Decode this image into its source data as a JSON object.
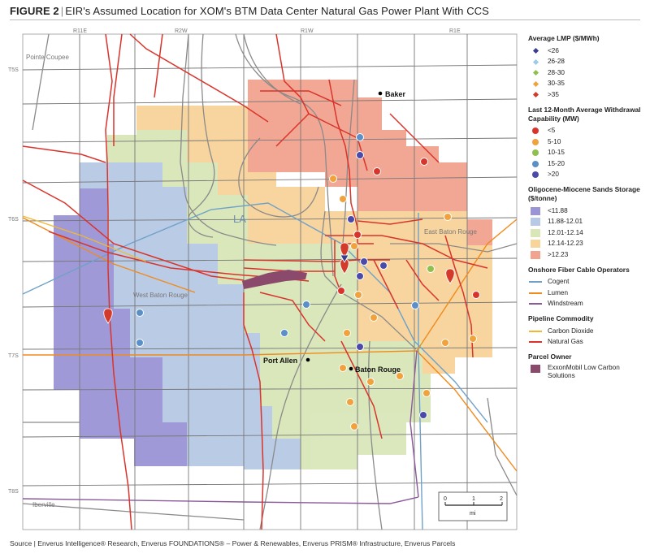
{
  "figure": {
    "label": "FIGURE 2",
    "title": "EIR's Assumed Location for XOM's BTM Data Center Natural Gas Power Plant With CCS"
  },
  "map": {
    "range_labels": [
      "R11E",
      "R2W",
      "R1W",
      "R1E"
    ],
    "township_labels": [
      "T5S",
      "T6S",
      "T7S",
      "T8S"
    ],
    "parish_labels": [
      "Pointe Coupee",
      "West Baton Rouge",
      "East Baton Rouge",
      "Iberville"
    ],
    "state_label": "LA",
    "cities": [
      "Baker",
      "Port Allen",
      "Baton Rouge"
    ],
    "scale": {
      "ticks": [
        "0",
        "1",
        "2"
      ],
      "unit": "mi"
    }
  },
  "legend": {
    "lmp": {
      "title": "Average LMP ($/MWh)",
      "items": [
        {
          "label": "<26",
          "color": "#3b3f8f"
        },
        {
          "label": "26-28",
          "color": "#9ec9e8"
        },
        {
          "label": "28-30",
          "color": "#8fbf4d"
        },
        {
          "label": "30-35",
          "color": "#f0a23c"
        },
        {
          "label": ">35",
          "color": "#d33a2c"
        }
      ]
    },
    "withdrawal": {
      "title": "Last 12-Month Average Withdrawal Capability (MW)",
      "items": [
        {
          "label": "<5",
          "color": "#d9342b"
        },
        {
          "label": "5-10",
          "color": "#f0a23c"
        },
        {
          "label": "10-15",
          "color": "#8fbf4d"
        },
        {
          "label": "15-20",
          "color": "#5b8fc7"
        },
        {
          "label": ">20",
          "color": "#4a4aa8"
        }
      ]
    },
    "storage": {
      "title": "Oligocene-Miocene Sands Storage ($/tonne)",
      "items": [
        {
          "label": "<11.88",
          "color": "#9b94d6"
        },
        {
          "label": "11.88-12.01",
          "color": "#b7c9e4"
        },
        {
          "label": "12.01-12.14",
          "color": "#d9e6b8"
        },
        {
          "label": "12.14-12.23",
          "color": "#f8d39a"
        },
        {
          "label": ">12.23",
          "color": "#f2a38f"
        }
      ]
    },
    "fiber": {
      "title": "Onshore Fiber Cable Operators",
      "items": [
        {
          "label": "Cogent",
          "color": "#6fa1c8"
        },
        {
          "label": "Lumen",
          "color": "#f08a1c"
        },
        {
          "label": "Windstream",
          "color": "#8a5a9b"
        }
      ]
    },
    "pipeline": {
      "title": "Pipeline Commodity",
      "items": [
        {
          "label": "Carbon Dioxide",
          "color": "#f2b731"
        },
        {
          "label": "Natural Gas",
          "color": "#d9342b"
        }
      ]
    },
    "parcel": {
      "title": "Parcel Owner",
      "items": [
        {
          "label": "ExxonMobil Low Carbon Solutions",
          "color": "#8b4a6c"
        }
      ]
    }
  },
  "source": "Source | Enverus Intelligence® Research, Enverus FOUNDATIONS® – Power & Renewables, Enverus PRISM® Infrastructure, Enverus Parcels"
}
